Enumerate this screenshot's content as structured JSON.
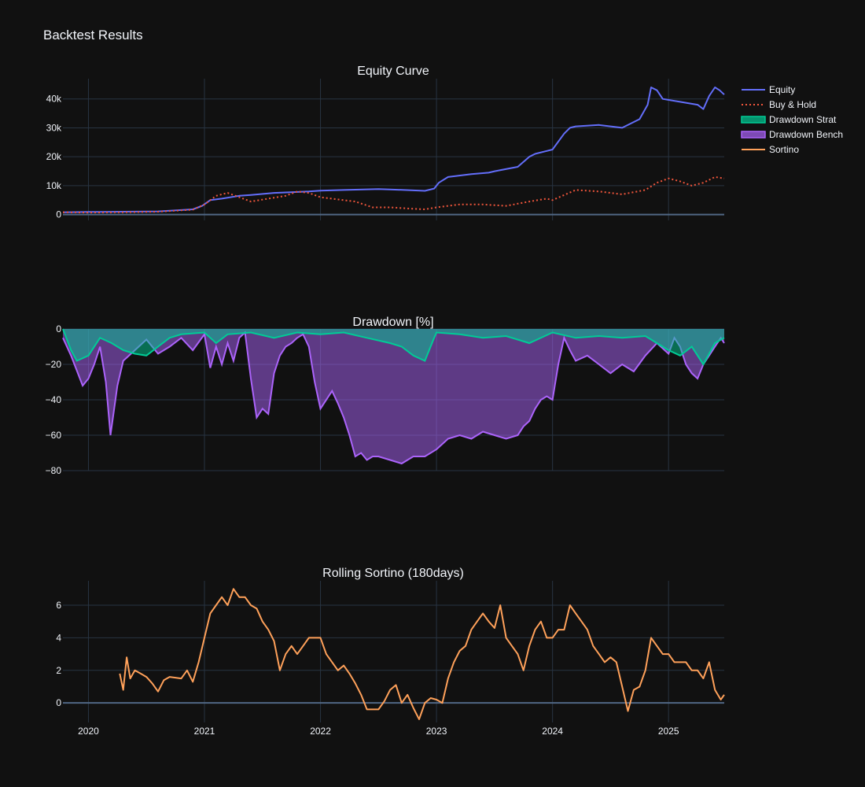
{
  "title": "Backtest Results",
  "legend": [
    {
      "label": "Equity",
      "color": "#636efa",
      "kind": "line"
    },
    {
      "label": "Buy & Hold",
      "color": "#ef553b",
      "kind": "dot"
    },
    {
      "label": "Drawdown Strat",
      "color": "#00cc96",
      "kind": "fill"
    },
    {
      "label": "Drawdown Bench",
      "color": "#ab63fa",
      "kind": "fill"
    },
    {
      "label": "Sortino",
      "color": "#ffa15a",
      "kind": "line"
    }
  ],
  "x_ticks": [
    "2020",
    "2021",
    "2022",
    "2023",
    "2024",
    "2025"
  ],
  "chart_data": [
    {
      "type": "line",
      "title": "Equity Curve",
      "xlim": [
        2019.78,
        2025.48
      ],
      "ylim": [
        -2000,
        47000
      ],
      "yticks": [
        {
          "v": 0,
          "label": "0"
        },
        {
          "v": 10000,
          "label": "10k"
        },
        {
          "v": 20000,
          "label": "20k"
        },
        {
          "v": 30000,
          "label": "30k"
        },
        {
          "v": 40000,
          "label": "40k"
        }
      ],
      "series": [
        {
          "name": "Equity",
          "color": "#636efa",
          "dash": "solid",
          "x": [
            2019.78,
            2020.0,
            2020.3,
            2020.6,
            2020.9,
            2020.98,
            2021.05,
            2021.15,
            2021.3,
            2021.4,
            2021.6,
            2021.9,
            2022.0,
            2022.2,
            2022.5,
            2022.6,
            2022.9,
            2022.98,
            2023.02,
            2023.1,
            2023.3,
            2023.45,
            2023.5,
            2023.7,
            2023.8,
            2023.85,
            2023.95,
            2024.0,
            2024.1,
            2024.15,
            2024.2,
            2024.4,
            2024.6,
            2024.75,
            2024.82,
            2024.85,
            2024.9,
            2024.95,
            2025.1,
            2025.25,
            2025.3,
            2025.35,
            2025.4,
            2025.44,
            2025.48
          ],
          "y": [
            800,
            900,
            1000,
            1100,
            1800,
            3000,
            5000,
            5500,
            6500,
            6800,
            7500,
            8000,
            8300,
            8500,
            8800,
            8700,
            8200,
            9000,
            11000,
            13000,
            14000,
            14500,
            15000,
            16500,
            20000,
            21000,
            22000,
            22500,
            28000,
            30000,
            30500,
            31000,
            30000,
            33000,
            38000,
            44000,
            43000,
            40000,
            39000,
            38000,
            36500,
            41000,
            44000,
            43000,
            41500
          ]
        },
        {
          "name": "Buy & Hold",
          "color": "#ef553b",
          "dash": "dot",
          "x": [
            2019.78,
            2020.0,
            2020.3,
            2020.6,
            2020.9,
            2021.0,
            2021.1,
            2021.2,
            2021.3,
            2021.4,
            2021.55,
            2021.7,
            2021.8,
            2021.9,
            2022.0,
            2022.2,
            2022.3,
            2022.45,
            2022.6,
            2022.8,
            2022.9,
            2023.0,
            2023.2,
            2023.4,
            2023.6,
            2023.8,
            2023.95,
            2024.0,
            2024.2,
            2024.4,
            2024.6,
            2024.8,
            2024.9,
            2025.0,
            2025.1,
            2025.2,
            2025.3,
            2025.4,
            2025.48
          ],
          "y": [
            800,
            700,
            800,
            1000,
            1700,
            3500,
            6500,
            7500,
            6000,
            4500,
            5500,
            6500,
            8000,
            7500,
            6000,
            5000,
            4500,
            2500,
            2500,
            2000,
            1800,
            2500,
            3500,
            3500,
            3000,
            4500,
            5500,
            5000,
            8500,
            8000,
            7000,
            8500,
            11000,
            12500,
            11500,
            10000,
            11000,
            13000,
            12500
          ]
        }
      ]
    },
    {
      "type": "area",
      "title": "Drawdown [%]",
      "xlim": [
        2019.78,
        2025.48
      ],
      "ylim": [
        -80,
        0
      ],
      "yticks": [
        {
          "v": 0,
          "label": "0"
        },
        {
          "v": -20,
          "label": "−20"
        },
        {
          "v": -40,
          "label": "−40"
        },
        {
          "v": -60,
          "label": "−60"
        },
        {
          "v": -80,
          "label": "−80"
        }
      ],
      "series": [
        {
          "name": "Drawdown Bench",
          "color": "#ab63fa",
          "x": [
            2019.78,
            2019.85,
            2019.95,
            2020.0,
            2020.05,
            2020.1,
            2020.15,
            2020.19,
            2020.25,
            2020.3,
            2020.4,
            2020.5,
            2020.6,
            2020.7,
            2020.8,
            2020.9,
            2021.0,
            2021.05,
            2021.1,
            2021.15,
            2021.2,
            2021.25,
            2021.3,
            2021.35,
            2021.4,
            2021.45,
            2021.5,
            2021.55,
            2021.6,
            2021.65,
            2021.7,
            2021.75,
            2021.8,
            2021.85,
            2021.9,
            2021.95,
            2022.0,
            2022.1,
            2022.15,
            2022.2,
            2022.25,
            2022.3,
            2022.35,
            2022.4,
            2022.45,
            2022.5,
            2022.6,
            2022.7,
            2022.8,
            2022.9,
            2023.0,
            2023.1,
            2023.2,
            2023.3,
            2023.4,
            2023.5,
            2023.6,
            2023.7,
            2023.75,
            2023.8,
            2023.85,
            2023.9,
            2023.95,
            2024.0,
            2024.05,
            2024.1,
            2024.15,
            2024.2,
            2024.3,
            2024.4,
            2024.5,
            2024.6,
            2024.7,
            2024.8,
            2024.9,
            2025.0,
            2025.05,
            2025.1,
            2025.15,
            2025.2,
            2025.25,
            2025.3,
            2025.35,
            2025.4,
            2025.45,
            2025.48
          ],
          "y": [
            -5,
            -15,
            -32,
            -28,
            -20,
            -10,
            -30,
            -60,
            -32,
            -18,
            -12,
            -6,
            -14,
            -10,
            -5,
            -12,
            -3,
            -22,
            -10,
            -20,
            -8,
            -18,
            -5,
            -2,
            -28,
            -50,
            -45,
            -48,
            -25,
            -15,
            -10,
            -8,
            -5,
            -3,
            -10,
            -30,
            -45,
            -35,
            -42,
            -50,
            -60,
            -72,
            -70,
            -74,
            -72,
            -72,
            -74,
            -76,
            -72,
            -72,
            -68,
            -62,
            -60,
            -62,
            -58,
            -60,
            -62,
            -60,
            -55,
            -52,
            -45,
            -40,
            -38,
            -40,
            -20,
            -5,
            -12,
            -18,
            -15,
            -20,
            -25,
            -20,
            -24,
            -15,
            -8,
            -14,
            -5,
            -10,
            -20,
            -25,
            -28,
            -20,
            -15,
            -10,
            -5,
            -8
          ]
        },
        {
          "name": "Drawdown Strat",
          "color": "#00cc96",
          "x": [
            2019.78,
            2019.85,
            2019.9,
            2020.0,
            2020.1,
            2020.2,
            2020.3,
            2020.4,
            2020.5,
            2020.6,
            2020.7,
            2020.8,
            2021.0,
            2021.1,
            2021.2,
            2021.4,
            2021.6,
            2021.8,
            2022.0,
            2022.2,
            2022.4,
            2022.6,
            2022.7,
            2022.8,
            2022.9,
            2022.98,
            2023.0,
            2023.2,
            2023.4,
            2023.6,
            2023.8,
            2024.0,
            2024.2,
            2024.4,
            2024.6,
            2024.8,
            2024.9,
            2025.0,
            2025.1,
            2025.2,
            2025.3,
            2025.4,
            2025.48
          ],
          "y": [
            0,
            -12,
            -18,
            -15,
            -5,
            -8,
            -12,
            -14,
            -15,
            -10,
            -5,
            -3,
            -2,
            -8,
            -3,
            -2,
            -5,
            -2,
            -3,
            -2,
            -5,
            -8,
            -10,
            -15,
            -18,
            -5,
            -2,
            -3,
            -5,
            -4,
            -8,
            -2,
            -5,
            -4,
            -5,
            -4,
            -8,
            -12,
            -15,
            -10,
            -20,
            -8,
            -5
          ]
        }
      ]
    },
    {
      "type": "line",
      "title": "Rolling Sortino (180days)",
      "xlim": [
        2019.78,
        2025.48
      ],
      "ylim": [
        -1.2,
        7.5
      ],
      "yticks": [
        {
          "v": 0,
          "label": "0"
        },
        {
          "v": 2,
          "label": "2"
        },
        {
          "v": 4,
          "label": "4"
        },
        {
          "v": 6,
          "label": "6"
        }
      ],
      "series": [
        {
          "name": "Sortino",
          "color": "#ffa15a",
          "x": [
            2020.27,
            2020.3,
            2020.33,
            2020.36,
            2020.4,
            2020.45,
            2020.5,
            2020.55,
            2020.6,
            2020.65,
            2020.7,
            2020.8,
            2020.85,
            2020.9,
            2020.95,
            2021.0,
            2021.05,
            2021.1,
            2021.15,
            2021.2,
            2021.25,
            2021.3,
            2021.35,
            2021.4,
            2021.45,
            2021.5,
            2021.55,
            2021.6,
            2021.65,
            2021.7,
            2021.75,
            2021.8,
            2021.85,
            2021.9,
            2022.0,
            2022.05,
            2022.1,
            2022.15,
            2022.2,
            2022.25,
            2022.3,
            2022.35,
            2022.4,
            2022.45,
            2022.5,
            2022.55,
            2022.6,
            2022.65,
            2022.7,
            2022.75,
            2022.8,
            2022.85,
            2022.9,
            2022.95,
            2023.0,
            2023.05,
            2023.1,
            2023.15,
            2023.2,
            2023.25,
            2023.3,
            2023.35,
            2023.4,
            2023.45,
            2023.5,
            2023.55,
            2023.6,
            2023.65,
            2023.7,
            2023.75,
            2023.8,
            2023.85,
            2023.9,
            2023.95,
            2024.0,
            2024.05,
            2024.1,
            2024.15,
            2024.2,
            2024.25,
            2024.3,
            2024.35,
            2024.4,
            2024.45,
            2024.5,
            2024.55,
            2024.6,
            2024.65,
            2024.7,
            2024.75,
            2024.8,
            2024.85,
            2024.9,
            2024.95,
            2025.0,
            2025.05,
            2025.1,
            2025.15,
            2025.2,
            2025.25,
            2025.3,
            2025.35,
            2025.4,
            2025.45,
            2025.48
          ],
          "y": [
            1.8,
            0.8,
            2.8,
            1.5,
            2.0,
            1.8,
            1.6,
            1.2,
            0.7,
            1.4,
            1.6,
            1.5,
            2.0,
            1.3,
            2.5,
            4.0,
            5.5,
            6.0,
            6.5,
            6.0,
            7.0,
            6.5,
            6.5,
            6.0,
            5.8,
            5.0,
            4.5,
            3.8,
            2.0,
            3.0,
            3.5,
            3.0,
            3.5,
            4.0,
            4.0,
            3.0,
            2.5,
            2.0,
            2.3,
            1.8,
            1.2,
            0.5,
            -0.4,
            -0.4,
            -0.4,
            0.1,
            0.8,
            1.1,
            0.0,
            0.5,
            -0.3,
            -1.0,
            0.0,
            0.3,
            0.2,
            0.0,
            1.5,
            2.5,
            3.2,
            3.5,
            4.5,
            5.0,
            5.5,
            5.0,
            4.6,
            6.0,
            4.0,
            3.5,
            3.0,
            2.0,
            3.5,
            4.5,
            5.0,
            4.0,
            4.0,
            4.5,
            4.5,
            6.0,
            5.5,
            5.0,
            4.5,
            3.5,
            3.0,
            2.5,
            2.8,
            2.5,
            1.0,
            -0.5,
            0.8,
            1.0,
            2.0,
            4.0,
            3.5,
            3.0,
            3.0,
            2.5,
            2.5,
            2.5,
            2.0,
            2.0,
            1.5,
            2.5,
            0.8,
            0.2,
            0.5
          ]
        }
      ]
    }
  ]
}
